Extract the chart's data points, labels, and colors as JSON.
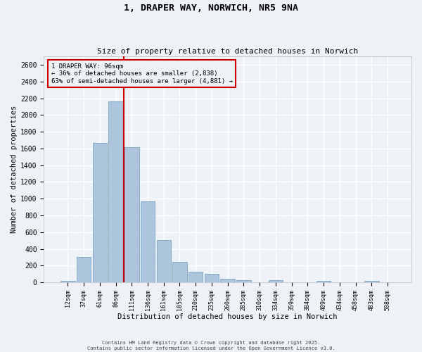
{
  "title1": "1, DRAPER WAY, NORWICH, NR5 9NA",
  "title2": "Size of property relative to detached houses in Norwich",
  "xlabel": "Distribution of detached houses by size in Norwich",
  "ylabel": "Number of detached properties",
  "categories": [
    "12sqm",
    "37sqm",
    "61sqm",
    "86sqm",
    "111sqm",
    "136sqm",
    "161sqm",
    "185sqm",
    "210sqm",
    "235sqm",
    "260sqm",
    "285sqm",
    "310sqm",
    "334sqm",
    "359sqm",
    "384sqm",
    "409sqm",
    "434sqm",
    "458sqm",
    "483sqm",
    "508sqm"
  ],
  "values": [
    20,
    300,
    1670,
    2160,
    1620,
    970,
    505,
    245,
    125,
    100,
    45,
    30,
    0,
    25,
    0,
    0,
    15,
    0,
    0,
    15,
    0
  ],
  "bar_color": "#aec6dd",
  "bar_edge_color": "#6699bb",
  "annotation_text_line1": "1 DRAPER WAY: 96sqm",
  "annotation_text_line2": "← 36% of detached houses are smaller (2,838)",
  "annotation_text_line3": "63% of semi-detached houses are larger (4,881) →",
  "annotation_box_color": "#cc0000",
  "vline_color": "#cc0000",
  "vline_x": 3.5,
  "ylim": [
    0,
    2700
  ],
  "yticks": [
    0,
    200,
    400,
    600,
    800,
    1000,
    1200,
    1400,
    1600,
    1800,
    2000,
    2200,
    2400,
    2600
  ],
  "footer_line1": "Contains HM Land Registry data © Crown copyright and database right 2025.",
  "footer_line2": "Contains public sector information licensed under the Open Government Licence v3.0.",
  "background_color": "#eef2f7",
  "grid_color": "#ffffff"
}
